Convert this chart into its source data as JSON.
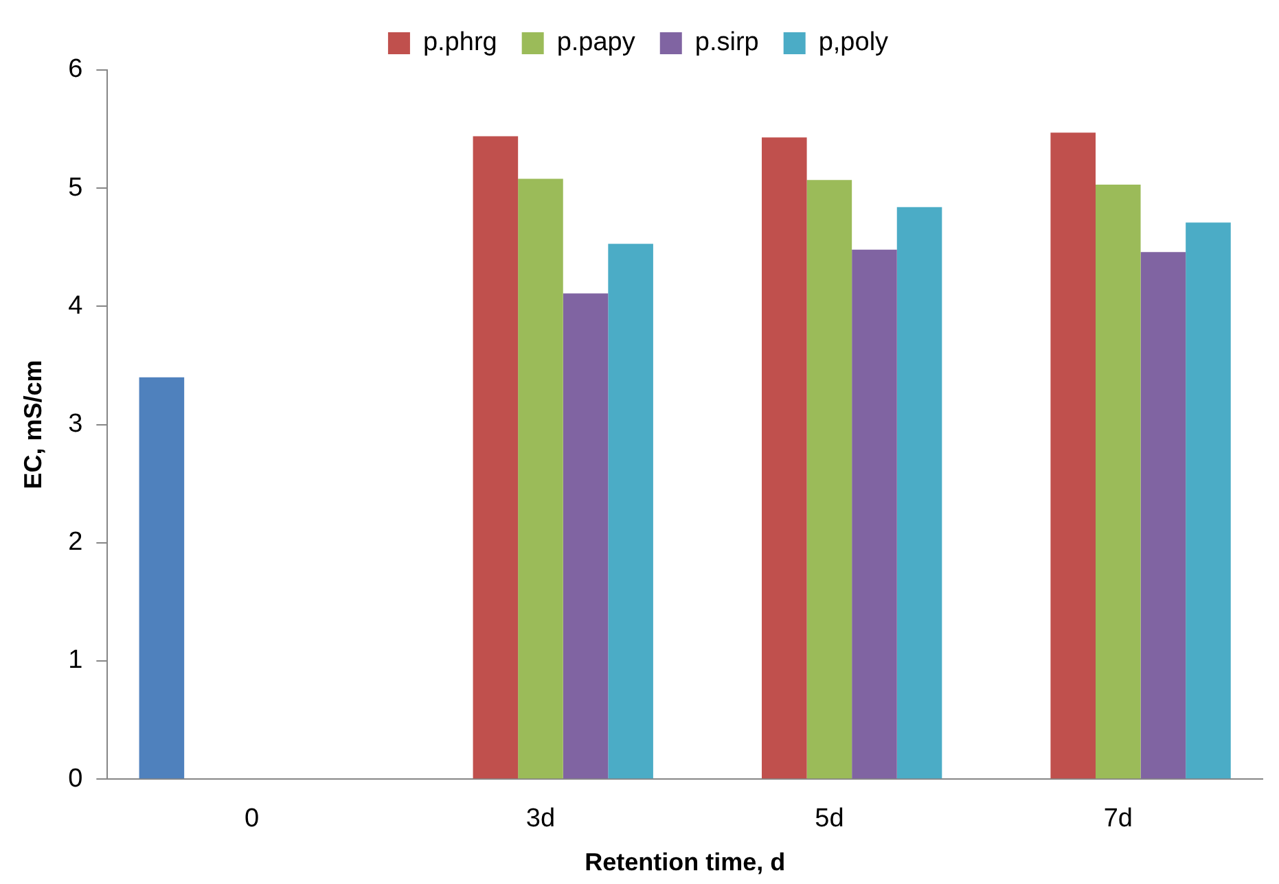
{
  "chart_data": {
    "type": "bar",
    "xlabel": "Retention time, d",
    "ylabel": "EC, mS/cm",
    "categories": [
      "0",
      "3d",
      "5d",
      "7d"
    ],
    "series": [
      {
        "color": "#4f81bd",
        "values": [
          3.4,
          null,
          null,
          null
        ]
      },
      {
        "name": "p.phrg",
        "color": "#c0504d",
        "values": [
          null,
          5.44,
          5.43,
          5.47
        ]
      },
      {
        "name": "p.papy",
        "color": "#9bbb59",
        "values": [
          null,
          5.08,
          5.07,
          5.03
        ]
      },
      {
        "name": "p.sirp",
        "color": "#8064a2",
        "values": [
          null,
          4.11,
          4.48,
          4.46
        ]
      },
      {
        "name": "p,poly",
        "color": "#4bacc6",
        "values": [
          null,
          4.53,
          4.84,
          4.71
        ]
      }
    ],
    "ylim": [
      0,
      6
    ],
    "yticks": [
      0,
      1,
      2,
      3,
      4,
      5,
      6
    ],
    "grid": false,
    "legend": "top"
  }
}
